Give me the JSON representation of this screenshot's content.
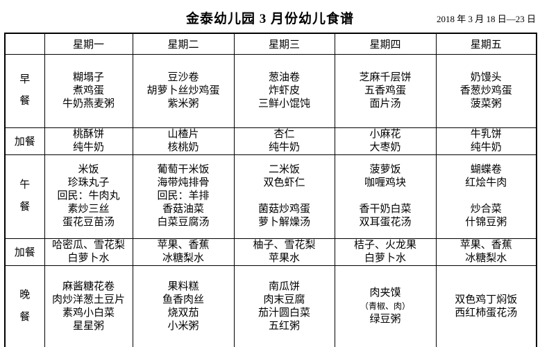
{
  "title": "金泰幼儿园 3 月份幼儿食谱",
  "date_range": "2018 年 3 月 18 日—23 日",
  "table": {
    "day_headers": [
      "星期一",
      "星期二",
      "星期三",
      "星期四",
      "星期五"
    ],
    "rows": [
      {
        "label": "早餐",
        "cells": [
          [
            "糊塌子",
            "煮鸡蛋",
            "牛奶燕麦粥"
          ],
          [
            "豆沙卷",
            "胡萝卜丝炒鸡蛋",
            "紫米粥"
          ],
          [
            "葱油卷",
            "炸虾皮",
            "三鲜小馄饨"
          ],
          [
            "芝麻千层饼",
            "五香鸡蛋",
            "面片汤"
          ],
          [
            "奶馒头",
            "香葱炒鸡蛋",
            "菠菜粥"
          ]
        ]
      },
      {
        "label": "加餐",
        "cells": [
          [
            "桃酥饼",
            "纯牛奶"
          ],
          [
            "山楂片",
            "核桃奶"
          ],
          [
            "杏仁",
            "纯牛奶"
          ],
          [
            "小麻花",
            "大枣奶"
          ],
          [
            "牛乳饼",
            "纯牛奶"
          ]
        ]
      },
      {
        "label": "午餐",
        "cells": [
          [
            "米饭",
            "珍珠丸子",
            "回民：牛肉丸",
            "素炒三丝",
            "蛋花豆苗汤"
          ],
          [
            "葡萄干米饭",
            "海带炖排骨",
            "回民：羊排",
            "香菇油菜",
            "白菜豆腐汤"
          ],
          [
            "二米饭",
            "双色虾仁",
            "",
            "菌菇炒鸡蛋",
            "萝卜解燥汤"
          ],
          [
            "菠萝饭",
            "咖喱鸡块",
            "",
            "香干奶白菜",
            "双耳蛋花汤"
          ],
          [
            "蝴蝶卷",
            "红烩牛肉",
            "",
            "炒合菜",
            "什锦豆粥"
          ]
        ]
      },
      {
        "label": "加餐",
        "cells": [
          [
            "哈密瓜、雪花梨",
            "白萝卜水"
          ],
          [
            "苹果、香蕉",
            "冰糖梨水"
          ],
          [
            "柚子、雪花梨",
            "苹果水"
          ],
          [
            "桔子、火龙果",
            "白萝卜水"
          ],
          [
            "苹果、香蕉",
            "冰糖梨水"
          ]
        ]
      },
      {
        "label": "晚餐",
        "cells": [
          [
            "麻酱糖花卷",
            "肉炒洋葱土豆片",
            "素鸡小白菜",
            "星星粥"
          ],
          [
            "果料糕",
            "鱼香肉丝",
            "烧双茄",
            "小米粥"
          ],
          [
            "南瓜饼",
            "肉末豆腐",
            "茄汁圆白菜",
            "五红粥"
          ],
          [
            "肉夹馍",
            "（青椒、肉）",
            "绿豆粥"
          ],
          [
            "双色鸡丁焖饭",
            "西红柿蛋花汤"
          ]
        ]
      }
    ]
  }
}
